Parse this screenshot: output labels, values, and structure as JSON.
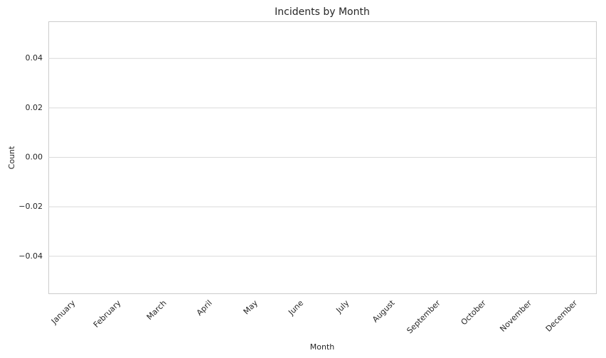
{
  "chart_data": {
    "type": "bar",
    "title": "Incidents by Month",
    "xlabel": "Month",
    "ylabel": "Count",
    "categories": [
      "January",
      "February",
      "March",
      "April",
      "May",
      "June",
      "July",
      "August",
      "September",
      "October",
      "November",
      "December"
    ],
    "values": [
      0,
      0,
      0,
      0,
      0,
      0,
      0,
      0,
      0,
      0,
      0,
      0
    ],
    "color": "#4c72b0",
    "ylim": [
      -0.055,
      0.055
    ],
    "yticks": [
      {
        "value": -0.04,
        "label": "−0.04"
      },
      {
        "value": -0.02,
        "label": "−0.02"
      },
      {
        "value": 0,
        "label": "0.00"
      },
      0.02,
      0.04
    ],
    "grid": true
  }
}
